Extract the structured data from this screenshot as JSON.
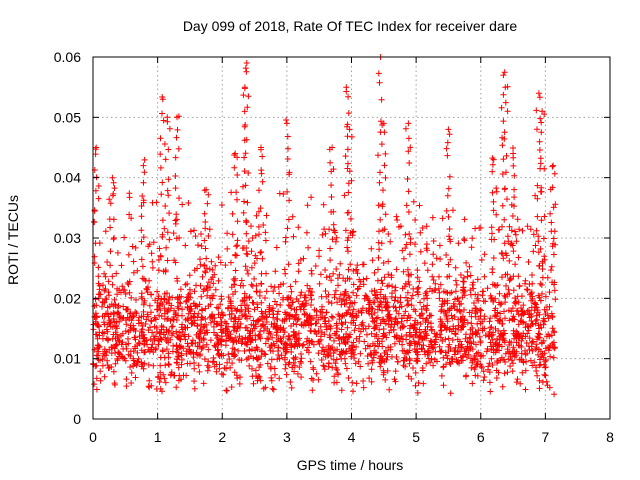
{
  "chart_data": {
    "type": "scatter",
    "title": "Day 099 of 2018, Rate Of TEC Index for receiver dare",
    "xlabel": "GPS time / hours",
    "ylabel": "ROTI / TECUs",
    "xlim": [
      0,
      8
    ],
    "ylim": [
      0,
      0.06
    ],
    "xticks": [
      "0",
      "1",
      "2",
      "3",
      "4",
      "5",
      "6",
      "7",
      "8"
    ],
    "yticks": [
      "0",
      "0.01",
      "0.02",
      "0.03",
      "0.04",
      "0.05",
      "0.06"
    ],
    "grid": true,
    "marker": "+",
    "color": "#ff0000",
    "data_range_x": [
      0,
      7.15
    ],
    "series": [
      {
        "name": "ROTI",
        "baseline_band": [
          0.008,
          0.02
        ],
        "x_start": 0.0,
        "x_end": 7.15,
        "spikes": [
          {
            "x": 0.05,
            "y": 0.045
          },
          {
            "x": 0.3,
            "y": 0.04
          },
          {
            "x": 0.78,
            "y": 0.042
          },
          {
            "x": 1.08,
            "y": 0.053
          },
          {
            "x": 1.15,
            "y": 0.05
          },
          {
            "x": 1.3,
            "y": 0.05
          },
          {
            "x": 1.75,
            "y": 0.038
          },
          {
            "x": 2.2,
            "y": 0.044
          },
          {
            "x": 2.35,
            "y": 0.055
          },
          {
            "x": 2.38,
            "y": 0.059
          },
          {
            "x": 2.6,
            "y": 0.045
          },
          {
            "x": 3.0,
            "y": 0.049
          },
          {
            "x": 3.7,
            "y": 0.045
          },
          {
            "x": 3.92,
            "y": 0.055
          },
          {
            "x": 3.97,
            "y": 0.048
          },
          {
            "x": 4.45,
            "y": 0.06
          },
          {
            "x": 4.5,
            "y": 0.049
          },
          {
            "x": 4.88,
            "y": 0.049
          },
          {
            "x": 5.5,
            "y": 0.048
          },
          {
            "x": 6.2,
            "y": 0.043
          },
          {
            "x": 6.35,
            "y": 0.057
          },
          {
            "x": 6.38,
            "y": 0.055
          },
          {
            "x": 6.5,
            "y": 0.044
          },
          {
            "x": 6.9,
            "y": 0.054
          },
          {
            "x": 6.95,
            "y": 0.051
          },
          {
            "x": 7.12,
            "y": 0.042
          }
        ]
      }
    ]
  }
}
